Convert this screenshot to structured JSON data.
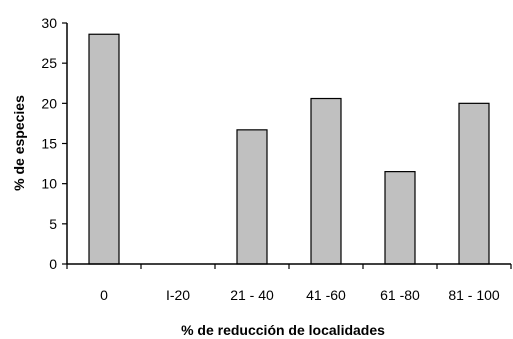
{
  "chart_data": {
    "type": "bar",
    "categories": [
      "0",
      "I-20",
      "21 - 40",
      "41 -60",
      "61 -80",
      "81 - 100"
    ],
    "values": [
      28.6,
      0,
      16.7,
      20.6,
      11.5,
      20.0
    ],
    "xlabel": "% de reducción de localidades",
    "ylabel": "% de especies",
    "ylim": [
      0,
      30
    ],
    "yticks": [
      0,
      5,
      10,
      15,
      20,
      25,
      30
    ],
    "grid": false,
    "legend": "none",
    "colors": {
      "bar_fill": "#c0c0c0",
      "bar_stroke": "#000000",
      "axis": "#000000"
    }
  }
}
